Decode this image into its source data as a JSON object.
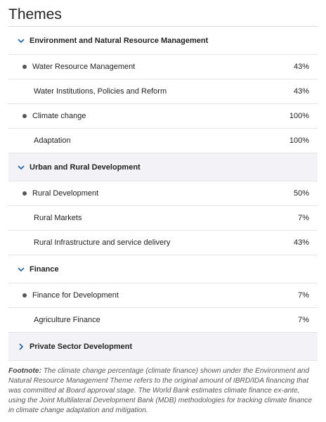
{
  "title": "Themes",
  "groups": [
    {
      "label": "Environment and Natural Resource Management",
      "expanded": true,
      "items": [
        {
          "label": "Water Resource Management",
          "value": "43%",
          "subs": [
            {
              "label": "Water Institutions, Policies and Reform",
              "value": "43%"
            }
          ]
        },
        {
          "label": "Climate change",
          "value": "100%",
          "subs": [
            {
              "label": "Adaptation",
              "value": "100%"
            }
          ]
        }
      ]
    },
    {
      "label": "Urban and Rural Development",
      "expanded": true,
      "items": [
        {
          "label": "Rural Development",
          "value": "50%",
          "subs": [
            {
              "label": "Rural Markets",
              "value": "7%"
            },
            {
              "label": "Rural Infrastructure and service delivery",
              "value": "43%"
            }
          ]
        }
      ]
    },
    {
      "label": "Finance",
      "expanded": true,
      "items": [
        {
          "label": "Finance for Development",
          "value": "7%",
          "subs": [
            {
              "label": "Agriculture Finance",
              "value": "7%"
            }
          ]
        }
      ]
    },
    {
      "label": "Private Sector Development",
      "expanded": false,
      "items": []
    }
  ],
  "footnote": {
    "label": "Footnote:",
    "text": "The climate change percentage (climate finance) shown under the Environment and Natural Resource Management Theme refers to the original amount of IBRD/IDA financing that was committed at Board approval stage. The World Bank estimates climate finance ex-ante, using the Joint Multilateral Development Bank (MDB) methodologies for tracking climate finance in climate change adaptation and mitigation."
  },
  "colors": {
    "accent": "#1f5fa8",
    "group_shade": "#f2f2f7"
  }
}
